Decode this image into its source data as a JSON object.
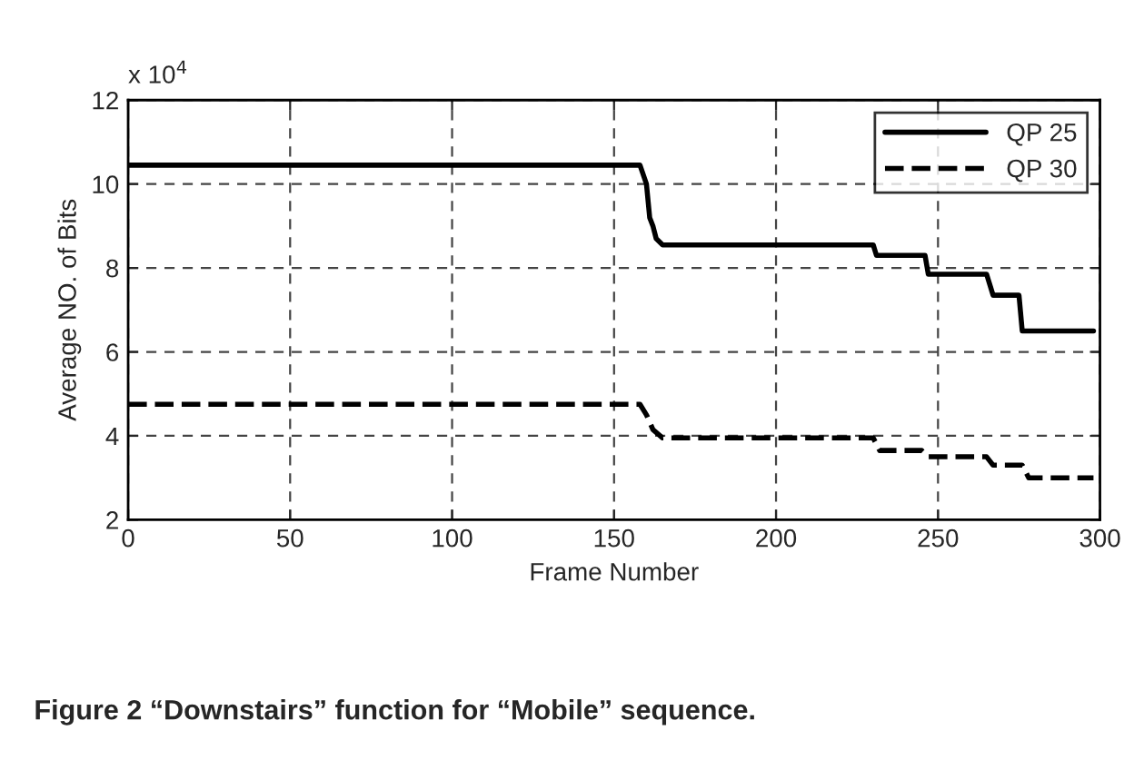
{
  "chart_data": {
    "type": "line",
    "xlabel": "Frame Number",
    "ylabel": "Average NO. of Bits",
    "annotations": [
      "x 10$^{4}$",
      "Figure 2 “Downstairs” function for “Mobile” sequence."
    ],
    "xlim": [
      0,
      300
    ],
    "xticks": [
      0,
      50,
      100,
      150,
      200,
      250,
      300
    ],
    "ylim": [
      2,
      12
    ],
    "yticks": [
      2,
      4,
      6,
      8,
      10,
      12
    ],
    "grid": true,
    "legend": "top right",
    "marker": "none",
    "series": [
      {
        "name": "QP 25",
        "color": "#000000",
        "line_style": "solid",
        "x": [
          0,
          158,
          160,
          161,
          162,
          163,
          165,
          230,
          231,
          246,
          247,
          265,
          267,
          275,
          276,
          298
        ],
        "values": [
          10.45,
          10.45,
          10.0,
          9.2,
          9.0,
          8.7,
          8.55,
          8.55,
          8.3,
          8.3,
          7.85,
          7.85,
          7.35,
          7.35,
          6.5,
          6.5
        ]
      },
      {
        "name": "QP 30",
        "color": "#000000",
        "line_style": "dashed",
        "x": [
          0,
          158,
          160,
          162,
          165,
          230,
          232,
          245,
          247,
          265,
          267,
          276,
          278,
          298
        ],
        "values": [
          4.75,
          4.75,
          4.5,
          4.15,
          3.95,
          3.95,
          3.65,
          3.65,
          3.5,
          3.5,
          3.3,
          3.3,
          3.0,
          3.0
        ]
      }
    ]
  }
}
